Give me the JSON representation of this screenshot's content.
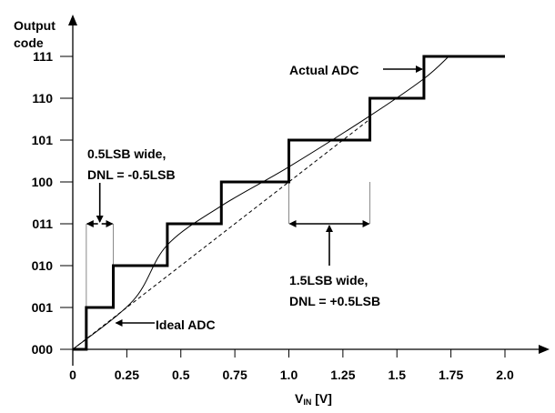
{
  "chart_data": {
    "type": "line",
    "ylabel": "Output code",
    "xlabel_main": "V",
    "xlabel_sub": "IN",
    "xlabel_unit": " [V]",
    "xlim": [
      0,
      2.0
    ],
    "ylim": [
      0,
      7
    ],
    "x_ticks": [
      "0",
      "0.25",
      "0.5",
      "0.75",
      "1.0",
      "1.25",
      "1.5",
      "1.75",
      "2.0"
    ],
    "x_tick_values": [
      0,
      0.25,
      0.5,
      0.75,
      1.0,
      1.25,
      1.5,
      1.75,
      2.0
    ],
    "y_ticks": [
      "000",
      "001",
      "010",
      "011",
      "100",
      "101",
      "110",
      "111"
    ],
    "grid": false,
    "series": [
      {
        "name": "Actual ADC",
        "style": "thick-step",
        "transitions": [
          0.0625,
          0.1875,
          0.4375,
          0.6875,
          1.0,
          1.375,
          1.625
        ],
        "x_end": 2.0
      },
      {
        "name": "Ideal ADC",
        "style": "dashed",
        "x": [
          0,
          1.375
        ],
        "y": [
          0,
          5.5
        ]
      },
      {
        "style": "thin-curve",
        "x": [
          0,
          0.28,
          0.435,
          0.685,
          1.0,
          1.372,
          1.623,
          1.74
        ],
        "y": [
          0,
          1.17,
          2.48,
          3.42,
          4.36,
          5.57,
          6.46,
          7
        ]
      }
    ],
    "annotations": {
      "actual_label": "Actual ADC",
      "ideal_label": "Ideal ADC",
      "narrow_line1": "0.5LSB wide,",
      "narrow_line2": "DNL = -0.5LSB",
      "wide_line1": "1.5LSB wide,",
      "wide_line2": "DNL = +0.5LSB"
    },
    "colors": {
      "ink": "#000000",
      "guide": "#888888"
    }
  }
}
